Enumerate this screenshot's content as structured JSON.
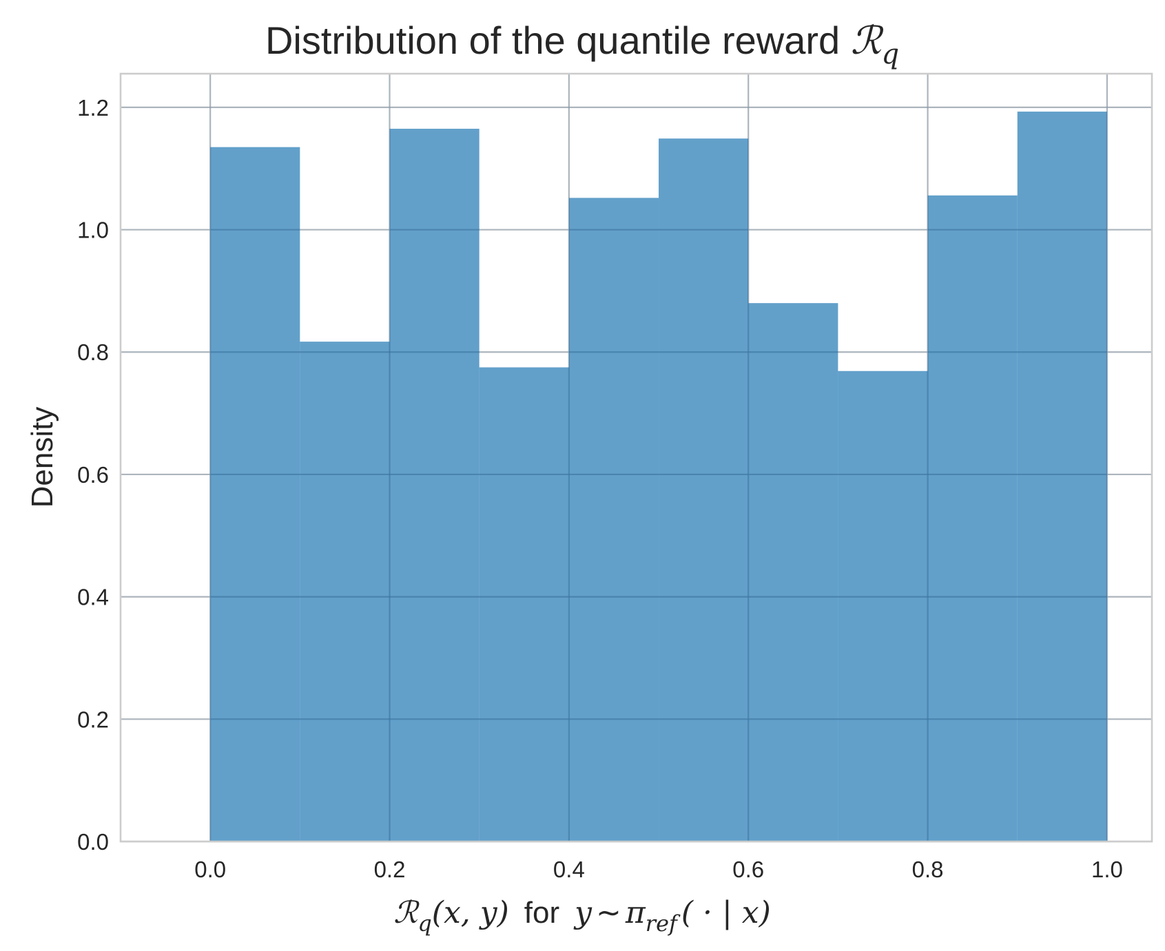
{
  "chart_data": {
    "type": "bar",
    "title": "Distribution of the quantile reward",
    "title_symbol": "ℛ",
    "title_symbol_sub": "q",
    "xlabel": {
      "r": "ℛ",
      "q": "q",
      "args": "(x, y)",
      "for": "for",
      "y": "y",
      "tilde": "∼",
      "pi": "π",
      "ref": "ref",
      "cond": "( · | x)"
    },
    "ylabel": "Density",
    "xlim": [
      -0.1,
      1.05
    ],
    "ylim": [
      0,
      1.255
    ],
    "x_ticks": [
      "0.0",
      "0.2",
      "0.4",
      "0.6",
      "0.8",
      "1.0"
    ],
    "y_ticks": [
      "0.0",
      "0.2",
      "0.4",
      "0.6",
      "0.8",
      "1.0",
      "1.2"
    ],
    "grid": true,
    "bin_edges": [
      0.0,
      0.1,
      0.2,
      0.3,
      0.4,
      0.5,
      0.6,
      0.7,
      0.8,
      0.9,
      1.0
    ],
    "values": [
      1.135,
      0.817,
      1.165,
      0.775,
      1.052,
      1.149,
      0.88,
      0.769,
      1.056,
      1.193
    ],
    "color": "#1f77b4"
  }
}
